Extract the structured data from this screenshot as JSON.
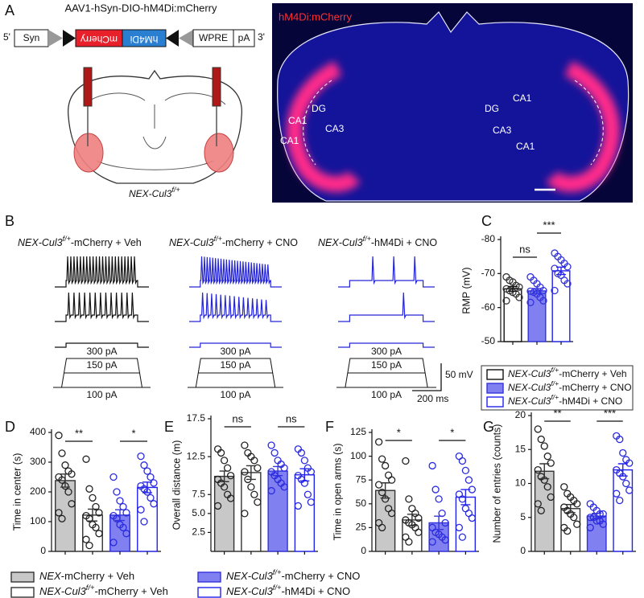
{
  "panel_labels": [
    "A",
    "B",
    "C",
    "D",
    "E",
    "F",
    "G"
  ],
  "construct": {
    "title": "AAV1-hSyn-DIO-hM4Di:mCherry",
    "five": "5'",
    "promoter": "Syn",
    "reporter": "mCherry",
    "receptor": "hM4Di",
    "wpre": "WPRE",
    "pa": "pA",
    "three": "3'"
  },
  "brain_label": {
    "italic": "NEX-Cul3",
    "sup": "f/+"
  },
  "image": {
    "title": "hM4Di:mCherry",
    "regions": [
      "DG",
      "CA1",
      "CA3",
      "CA1",
      "DG",
      "CA1",
      "CA3",
      "CA1"
    ]
  },
  "traces": {
    "titles": [
      {
        "italic": "NEX-Cul3",
        "sup": "f/+",
        "rest": "-mCherry + Veh"
      },
      {
        "italic": "NEX-Cul3",
        "sup": "f/+",
        "rest": "-mCherry + CNO"
      },
      {
        "italic": "NEX-Cul3",
        "sup": "f/+",
        "rest": "-hM4Di + CNO"
      }
    ],
    "steps": [
      "300 pA",
      "150 pA",
      "100 pA"
    ],
    "scale": [
      "50 mV",
      "200 ms"
    ]
  },
  "chart_data": [
    {
      "type": "bar",
      "ylabel": "RMP (mV)",
      "ylim": [
        -50,
        -80
      ],
      "yticks": [
        -80,
        -70,
        -60,
        -50
      ],
      "values": [
        -65.5,
        -64.9,
        -70.8
      ],
      "errors": [
        0.7,
        0.7,
        1.1
      ],
      "points": [
        [
          -69,
          -68,
          -67.5,
          -66.5,
          -66,
          -65.5,
          -65,
          -64.5,
          -64,
          -63,
          -62
        ],
        [
          -69,
          -68,
          -67,
          -66,
          -65,
          -64.8,
          -64.5,
          -64,
          -63,
          -62,
          -61.5
        ],
        [
          -76,
          -75,
          -74,
          -73,
          -72,
          -71.5,
          -70,
          -69.5,
          -68,
          -67,
          -65
        ]
      ],
      "colors": [
        "#ffffff",
        "#8080f0",
        "#ffffff"
      ],
      "edges": [
        "#111111",
        "#3333dd",
        "#2222ee"
      ],
      "point_colors": [
        "#333333",
        "#3333dd",
        "#3333dd"
      ],
      "sig": [
        "ns",
        "***"
      ],
      "legend": [
        {
          "italic": "NEX-Cul3",
          "sup": "f/+",
          "rest": "-mCherry + Veh"
        },
        {
          "italic": "NEX-Cul3",
          "sup": "f/+",
          "rest": "-mCherry + CNO"
        },
        {
          "italic": "NEX-Cul3",
          "sup": "f/+",
          "rest": "-hM4Di + CNO"
        }
      ]
    },
    {
      "type": "bar",
      "ylabel": "Time in center (s)",
      "ylim": [
        0,
        400
      ],
      "yticks": [
        0,
        100,
        200,
        300,
        400
      ],
      "values": [
        238,
        122,
        122,
        215
      ],
      "errors": [
        22,
        20,
        18,
        18
      ],
      "points": [
        [
          390,
          330,
          290,
          270,
          260,
          250,
          240,
          220,
          200,
          160,
          130,
          110
        ],
        [
          310,
          210,
          180,
          150,
          130,
          120,
          110,
          90,
          80,
          60,
          40,
          20
        ],
        [
          250,
          200,
          170,
          150,
          130,
          120,
          110,
          90,
          80,
          60,
          30
        ],
        [
          320,
          290,
          270,
          250,
          230,
          220,
          210,
          200,
          180,
          160,
          140,
          100
        ]
      ],
      "colors": [
        "#c8c8c8",
        "#ffffff",
        "#8080f0",
        "#ffffff"
      ],
      "edges": [
        "#333333",
        "#333333",
        "#3333dd",
        "#2222ee"
      ],
      "point_colors": [
        "#222222",
        "#222222",
        "#2a2ae0",
        "#2a2ae0"
      ],
      "sig": [
        "**",
        "*"
      ]
    },
    {
      "type": "bar",
      "ylabel": "Overall distance (m)",
      "ylim": [
        0,
        17.5
      ],
      "yticks": [
        2.5,
        {
          "value": 5,
          "label": "5.0"
        },
        7.5,
        12.5,
        17.5
      ],
      "values": [
        9.9,
        10.4,
        10.6,
        10.1
      ],
      "errors": [
        0.7,
        0.9,
        0.6,
        0.8
      ],
      "points": [
        [
          13.5,
          13,
          12,
          11,
          10,
          9.5,
          9,
          8.5,
          7.5,
          7,
          6
        ],
        [
          14,
          13,
          12.5,
          12,
          11,
          10.5,
          9.5,
          8.5,
          7.5,
          6.5,
          5
        ],
        [
          14,
          13,
          12,
          11.5,
          11,
          10.5,
          10,
          9.5,
          9,
          8.5,
          8
        ],
        [
          13.5,
          13,
          12,
          11,
          10.5,
          10,
          9.5,
          9,
          7.5,
          6.5,
          6
        ]
      ],
      "colors": [
        "#c8c8c8",
        "#ffffff",
        "#8080f0",
        "#ffffff"
      ],
      "edges": [
        "#333333",
        "#333333",
        "#3333dd",
        "#2222ee"
      ],
      "point_colors": [
        "#222222",
        "#222222",
        "#2a2ae0",
        "#2a2ae0"
      ],
      "sig": [
        "ns",
        "ns"
      ]
    },
    {
      "type": "bar",
      "ylabel": "Time in open arms (s)",
      "ylim": [
        0,
        125
      ],
      "yticks": [
        0,
        25,
        50,
        75,
        100,
        125
      ],
      "values": [
        64,
        33,
        30,
        57
      ],
      "errors": [
        8,
        6,
        7,
        8
      ],
      "points": [
        [
          115,
          97,
          90,
          80,
          75,
          70,
          62,
          55,
          45,
          40,
          30,
          25
        ],
        [
          95,
          55,
          45,
          40,
          35,
          33,
          30,
          28,
          25,
          20,
          15,
          10
        ],
        [
          90,
          65,
          55,
          40,
          30,
          25,
          20,
          18,
          15,
          12,
          10
        ],
        [
          100,
          95,
          85,
          75,
          65,
          60,
          55,
          45,
          40,
          35,
          25,
          15
        ]
      ],
      "colors": [
        "#c8c8c8",
        "#ffffff",
        "#8080f0",
        "#ffffff"
      ],
      "edges": [
        "#333333",
        "#333333",
        "#3333dd",
        "#2222ee"
      ],
      "point_colors": [
        "#222222",
        "#222222",
        "#2a2ae0",
        "#2a2ae0"
      ],
      "sig": [
        "*",
        "*"
      ]
    },
    {
      "type": "bar",
      "ylabel": "Number of entries (counts)",
      "ylim": [
        0,
        20
      ],
      "yticks": [
        0,
        5,
        10,
        15,
        20
      ],
      "values": [
        11.8,
        6.3,
        5.2,
        12
      ],
      "errors": [
        1.1,
        0.6,
        0.4,
        0.9
      ],
      "points": [
        [
          18,
          16.5,
          15.5,
          14,
          13,
          12,
          11,
          10.5,
          9.5,
          8,
          7,
          6
        ],
        [
          9.5,
          8.5,
          8,
          7.5,
          7,
          6.5,
          6,
          5.5,
          5,
          4,
          3.5,
          3
        ],
        [
          7,
          6.5,
          6,
          5.5,
          5.5,
          5,
          5,
          4.5,
          4.5,
          4,
          3.5
        ],
        [
          17,
          16.5,
          14.5,
          13.5,
          13,
          12,
          11.5,
          11,
          10,
          9,
          8.5,
          7.5
        ]
      ],
      "colors": [
        "#c8c8c8",
        "#ffffff",
        "#8080f0",
        "#ffffff"
      ],
      "edges": [
        "#333333",
        "#333333",
        "#3333dd",
        "#2222ee"
      ],
      "point_colors": [
        "#222222",
        "#222222",
        "#2a2ae0",
        "#2a2ae0"
      ],
      "sig": [
        "**",
        "***"
      ]
    }
  ],
  "group_legend": [
    {
      "italic": "NEX",
      "rest": "-mCherry + Veh",
      "color": "#c8c8c8",
      "edge": "#333333"
    },
    {
      "italic": "NEX-Cul3",
      "sup": "f/+",
      "rest": "-mCherry + CNO",
      "color": "#8080f0",
      "edge": "#3333dd"
    },
    {
      "italic": "NEX-Cul3",
      "sup": "f/+",
      "rest": "-mCherry + Veh",
      "color": "#ffffff",
      "edge": "#333333"
    },
    {
      "italic": "NEX-Cul3",
      "sup": "f/+",
      "rest": "-hM4Di + CNO",
      "color": "#ffffff",
      "edge": "#2222ee"
    }
  ]
}
